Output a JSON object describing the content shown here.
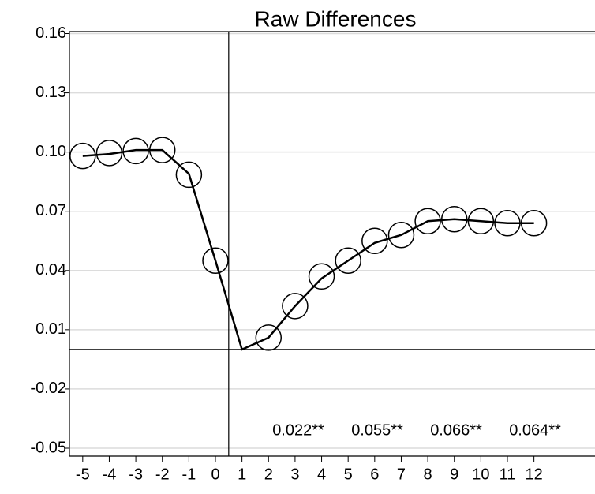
{
  "chart_data": {
    "type": "line",
    "title": "Raw Differences",
    "x": [
      -5,
      -4,
      -3,
      -2,
      -1,
      0,
      1,
      2,
      3,
      4,
      5,
      6,
      7,
      8,
      9,
      10,
      11,
      12
    ],
    "series": [
      {
        "color": "#000000",
        "style": "line",
        "values": [
          0.098,
          0.099,
          0.101,
          0.101,
          0.089,
          0.045,
          0.0,
          0.006,
          0.022,
          0.036,
          0.045,
          0.054,
          0.058,
          0.065,
          0.066,
          0.065,
          0.064,
          0.064
        ]
      },
      {
        "color": "#000000",
        "style": "circle",
        "values": [
          0.098,
          0.0995,
          0.1005,
          0.101,
          0.0885,
          0.045,
          null,
          0.006,
          0.022,
          0.037,
          0.045,
          0.055,
          0.058,
          0.065,
          0.066,
          0.065,
          0.064,
          0.064
        ]
      }
    ],
    "xlim": [
      -5.5,
      14.3
    ],
    "xticks": [
      -5,
      -4,
      -3,
      -2,
      -1,
      0,
      1,
      2,
      3,
      4,
      5,
      6,
      7,
      8,
      9,
      10,
      11,
      12
    ],
    "ylim": [
      -0.054,
      0.161
    ],
    "yticks": [
      -0.05,
      -0.02,
      0.01,
      0.04,
      0.07,
      {
        "value": 0.1,
        "label": "0.10"
      },
      0.13,
      0.16
    ],
    "grid": true,
    "xline": 0.5,
    "yline": 0,
    "annotations": [
      "0.022**",
      "0.055**",
      "0.066**",
      "0.064**"
    ]
  }
}
